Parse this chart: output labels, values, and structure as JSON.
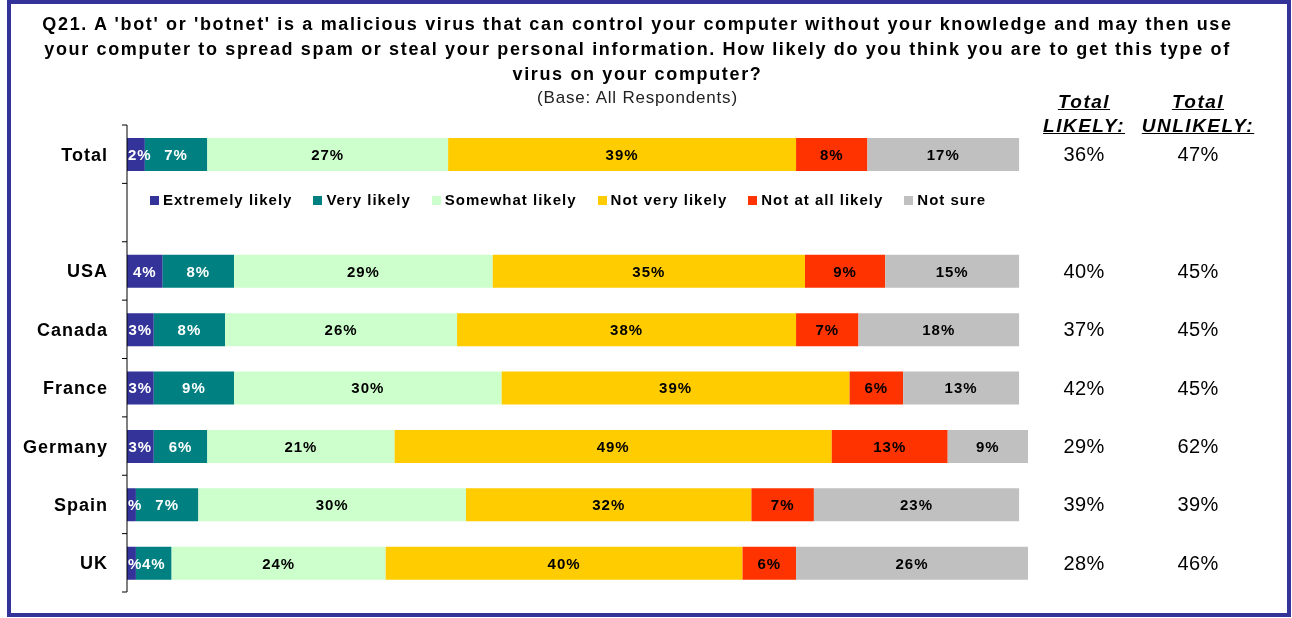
{
  "chart_data": {
    "type": "bar",
    "orientation": "horizontal",
    "stacked": true,
    "title": "Q21. A 'bot' or 'botnet' is a malicious virus that can control your computer without your knowledge and may then use your computer to spread spam or steal your personal information. How likely do you think you are to get this type of virus on your computer?",
    "subtitle": "(Base: All Respondents)",
    "categories": [
      "Total",
      null,
      "USA",
      "Canada",
      "France",
      "Germany",
      "Spain",
      "UK"
    ],
    "series": [
      {
        "name": "Extremely likely",
        "color": "#333399",
        "values": [
          2,
          null,
          4,
          3,
          3,
          3,
          1,
          1
        ],
        "value_labels": [
          "2%",
          null,
          "4%",
          "3%",
          "3%",
          "3%",
          "%",
          "%"
        ]
      },
      {
        "name": "Very likely",
        "color": "#008080",
        "values": [
          7,
          null,
          8,
          8,
          9,
          6,
          7,
          4
        ],
        "value_labels": [
          "7%",
          null,
          "8%",
          "8%",
          "9%",
          "6%",
          "7%",
          "4%"
        ]
      },
      {
        "name": "Somewhat likely",
        "color": "#ccffcc",
        "values": [
          27,
          null,
          29,
          26,
          30,
          21,
          30,
          24
        ],
        "value_labels": [
          "27%",
          null,
          "29%",
          "26%",
          "30%",
          "21%",
          "30%",
          "24%"
        ]
      },
      {
        "name": "Not very likely",
        "color": "#ffcc00",
        "values": [
          39,
          null,
          35,
          38,
          39,
          49,
          32,
          40
        ],
        "value_labels": [
          "39%",
          null,
          "35%",
          "38%",
          "39%",
          "49%",
          "32%",
          "40%"
        ]
      },
      {
        "name": "Not at all likely",
        "color": "#ff3300",
        "values": [
          8,
          null,
          9,
          7,
          6,
          13,
          7,
          6
        ],
        "value_labels": [
          "8%",
          null,
          "9%",
          "7%",
          "6%",
          "13%",
          "7%",
          "6%"
        ]
      },
      {
        "name": "Not sure",
        "color": "#c0c0c0",
        "values": [
          17,
          null,
          15,
          18,
          13,
          9,
          23,
          26
        ],
        "value_labels": [
          "17%",
          null,
          "15%",
          "18%",
          "13%",
          "9%",
          "23%",
          "26%"
        ]
      }
    ],
    "xlim": [
      0,
      101
    ],
    "tick_labels": "y",
    "legend": "top",
    "annotations": [
      "Total LIKELY:",
      "Total UNLIKELY:",
      "36%",
      "47%",
      "40%",
      "45%",
      "37%",
      "45%",
      "42%",
      "45%",
      "29%",
      "62%",
      "39%",
      "39%",
      "28%",
      "46%"
    ]
  }
}
